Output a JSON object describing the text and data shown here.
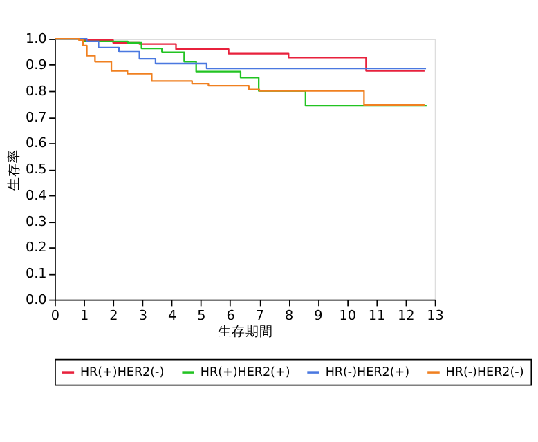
{
  "chart_data": {
    "type": "step",
    "xlabel": "生存期間",
    "ylabel": "生存率",
    "xlim": [
      0,
      13
    ],
    "xticks": [
      0,
      1,
      2,
      3,
      4,
      5,
      6,
      7,
      8,
      9,
      10,
      11,
      12,
      13
    ],
    "ylim": [
      0,
      1
    ],
    "yticks": [
      {
        "value": 0,
        "label": "0.0"
      },
      0.1,
      0.2,
      0.3,
      0.4,
      0.5,
      0.6,
      0.7,
      0.8,
      0.9,
      {
        "value": 1,
        "label": "1.0"
      }
    ],
    "grid": false,
    "legend": "bottom",
    "line_style": "solid",
    "marker": "none",
    "series": [
      {
        "name": "HR(+)HER2(-)",
        "color": "#e8213c",
        "x": [
          0,
          1.0,
          2.0,
          2.9,
          4.15,
          5.95,
          8.0,
          10.65,
          12.65
        ],
        "values": [
          1.0,
          0.995,
          0.985,
          0.98,
          0.96,
          0.943,
          0.928,
          0.877,
          0.877
        ]
      },
      {
        "name": "HR(+)HER2(+)",
        "color": "#22c322",
        "x": [
          0,
          1.0,
          2.5,
          2.97,
          3.67,
          4.43,
          4.84,
          6.36,
          6.98,
          8.58,
          12.72
        ],
        "values": [
          1.0,
          0.99,
          0.985,
          0.963,
          0.948,
          0.912,
          0.874,
          0.851,
          0.8,
          0.743,
          0.743
        ]
      },
      {
        "name": "HR(-)HER2(+)",
        "color": "#4a78e0",
        "x": [
          0,
          1.1,
          1.5,
          2.2,
          2.9,
          3.45,
          5.2,
          12.7
        ],
        "values": [
          1.0,
          0.99,
          0.966,
          0.95,
          0.923,
          0.905,
          0.886,
          0.886
        ]
      },
      {
        "name": "HR(-)HER2(-)",
        "color": "#f08020",
        "x": [
          0,
          0.83,
          0.97,
          1.1,
          1.38,
          1.94,
          2.49,
          3.32,
          4.7,
          5.26,
          6.64,
          7.0,
          10.58,
          12.65
        ],
        "values": [
          1.0,
          0.995,
          0.974,
          0.935,
          0.912,
          0.877,
          0.866,
          0.838,
          0.828,
          0.82,
          0.805,
          0.8,
          0.746,
          0.746
        ]
      }
    ]
  }
}
